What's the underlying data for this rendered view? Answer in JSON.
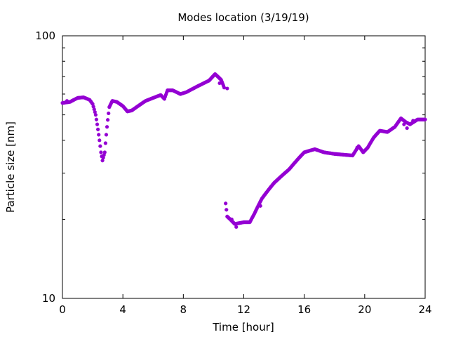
{
  "chart_data": {
    "type": "scatter",
    "title": "Modes location (3/19/19)",
    "xlabel": "Time [hour]",
    "ylabel": "Particle size [nm]",
    "xlim": [
      0,
      24
    ],
    "ylim": [
      10,
      100
    ],
    "ylog": true,
    "grid": false,
    "legend": "none",
    "marker_color": "#9400d3",
    "x_ticks": [
      0,
      4,
      8,
      12,
      16,
      20,
      24
    ],
    "x_tick_labels": [
      "0",
      "4",
      "8",
      "12",
      "16",
      "20",
      "24"
    ],
    "y_ticks": [
      10,
      100
    ],
    "y_tick_labels": [
      "10",
      "100"
    ],
    "anchors": [
      [
        0.0,
        55.5
      ],
      [
        0.5,
        56.0
      ],
      [
        1.0,
        58.0
      ],
      [
        1.4,
        58.3
      ],
      [
        1.8,
        57.0
      ],
      [
        2.0,
        55.0
      ],
      [
        2.2,
        50.0
      ],
      [
        2.4,
        42.0
      ],
      [
        2.55,
        36.0
      ],
      [
        2.65,
        33.5
      ],
      [
        2.8,
        36.0
      ],
      [
        2.95,
        45.0
      ],
      [
        3.1,
        53.5
      ],
      [
        3.3,
        56.5
      ],
      [
        3.6,
        56.0
      ],
      [
        4.0,
        54.0
      ],
      [
        4.3,
        51.5
      ],
      [
        4.6,
        52.0
      ],
      [
        5.0,
        54.0
      ],
      [
        5.5,
        56.5
      ],
      [
        6.0,
        58.0
      ],
      [
        6.5,
        59.5
      ],
      [
        6.75,
        57.5
      ],
      [
        6.95,
        62.0
      ],
      [
        7.3,
        62.0
      ],
      [
        7.8,
        60.0
      ],
      [
        8.2,
        61.0
      ],
      [
        9.0,
        64.5
      ],
      [
        9.7,
        67.5
      ],
      [
        10.1,
        71.5
      ],
      [
        10.5,
        68.0
      ],
      [
        10.7,
        63.5
      ]
    ],
    "anchors2": [
      [
        10.8,
        23.0
      ],
      [
        10.9,
        20.5
      ],
      [
        11.1,
        20.0
      ],
      [
        11.4,
        19.2
      ],
      [
        12.0,
        19.5
      ],
      [
        12.4,
        19.5
      ],
      [
        12.7,
        21.0
      ],
      [
        13.2,
        24.0
      ],
      [
        14.0,
        27.5
      ],
      [
        15.0,
        31.0
      ],
      [
        16.0,
        36.0
      ],
      [
        16.7,
        37.0
      ],
      [
        17.3,
        36.0
      ],
      [
        18.0,
        35.5
      ],
      [
        19.2,
        35.0
      ],
      [
        19.6,
        38.0
      ],
      [
        19.9,
        36.0
      ],
      [
        20.2,
        37.5
      ],
      [
        20.6,
        41.0
      ],
      [
        21.0,
        43.5
      ],
      [
        21.5,
        43.0
      ],
      [
        22.0,
        45.0
      ],
      [
        22.4,
        48.5
      ],
      [
        22.7,
        47.0
      ],
      [
        23.0,
        46.0
      ],
      [
        23.5,
        48.0
      ],
      [
        24.0,
        48.0
      ]
    ],
    "extra_points": [
      [
        0.3,
        56.5
      ],
      [
        10.4,
        66.0
      ],
      [
        10.9,
        63.0
      ],
      [
        11.2,
        20.0
      ],
      [
        11.5,
        18.7
      ],
      [
        13.1,
        22.5
      ],
      [
        19.5,
        37.5
      ],
      [
        22.6,
        46.0
      ],
      [
        22.8,
        44.5
      ],
      [
        23.2,
        47.5
      ]
    ]
  }
}
